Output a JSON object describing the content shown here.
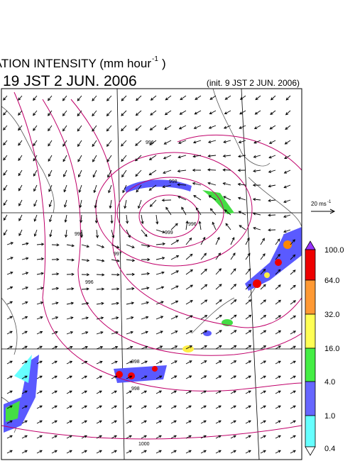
{
  "header": {
    "title": "PRECIPITATION INTENSITY (mm hour",
    "title_sup": "-1",
    "title_end": ")",
    "valid_time": "19 JST 2 JUN. 2006",
    "init_time": "(init. 9 JST 2 JUN. 2006)"
  },
  "reference_vector": {
    "label": "20 ms",
    "label_sup": "-1"
  },
  "colorbar": {
    "labels": [
      "100.0",
      "64.0",
      "32.0",
      "16.0",
      "4.0",
      "1.0",
      "0.4"
    ]
  },
  "isobar_labels": [
    "996",
    "998",
    "999",
    "996",
    "996",
    "997",
    "996",
    "998",
    "998",
    "1000"
  ]
}
